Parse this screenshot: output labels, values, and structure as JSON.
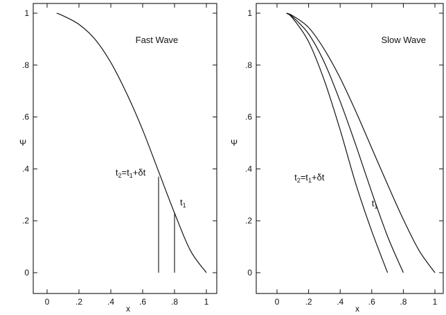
{
  "chart_data": [
    {
      "type": "line",
      "title": "Fast Wave",
      "xlabel": "x",
      "ylabel": "Ψ",
      "xlim": [
        0,
        1
      ],
      "ylim": [
        0,
        1
      ],
      "x_ticks": [
        "0",
        ".2",
        ".4",
        ".6",
        ".8",
        "1"
      ],
      "y_ticks": [
        "0",
        ".2",
        ".4",
        ".6",
        ".8",
        "1"
      ],
      "grid": false,
      "series": [
        {
          "x": [
            0.06,
            0.1,
            0.2,
            0.3,
            0.4,
            0.5,
            0.6,
            0.7,
            0.8,
            0.9,
            1.0
          ],
          "y": [
            1.0,
            0.99,
            0.957,
            0.9,
            0.81,
            0.69,
            0.55,
            0.39,
            0.23,
            0.085,
            0.0
          ]
        }
      ],
      "markers": [
        {
          "x": 0.7,
          "y_top": 0.37
        },
        {
          "x": 0.8,
          "y_top": 0.23
        }
      ],
      "annotations": [
        {
          "base": "t",
          "sub": "2",
          "rest": "=t",
          "sub2": "1",
          "tail": "+δt",
          "x": 0.43,
          "y": 0.375
        },
        {
          "base": "t",
          "sub": "1",
          "x": 0.835,
          "y": 0.26
        }
      ]
    },
    {
      "type": "line",
      "title": "Slow Wave",
      "xlabel": "x",
      "ylabel": "Ψ",
      "xlim": [
        0,
        1
      ],
      "ylim": [
        0,
        1
      ],
      "x_ticks": [
        "0",
        ".2",
        ".4",
        ".6",
        ".8",
        "1"
      ],
      "y_ticks": [
        "0",
        ".2",
        ".4",
        ".6",
        ".8",
        "1"
      ],
      "grid": false,
      "series": [
        {
          "x": [
            0.06,
            0.1,
            0.2,
            0.3,
            0.4,
            0.5,
            0.6,
            0.7
          ],
          "y": [
            1.0,
            0.98,
            0.89,
            0.74,
            0.55,
            0.34,
            0.16,
            0.0
          ]
        },
        {
          "x": [
            0.06,
            0.1,
            0.2,
            0.3,
            0.4,
            0.5,
            0.6,
            0.7,
            0.8
          ],
          "y": [
            1.0,
            0.985,
            0.92,
            0.81,
            0.66,
            0.49,
            0.31,
            0.14,
            0.0
          ]
        },
        {
          "x": [
            0.06,
            0.1,
            0.2,
            0.3,
            0.4,
            0.5,
            0.6,
            0.7,
            0.8,
            0.9,
            1.0
          ],
          "y": [
            1.0,
            0.99,
            0.945,
            0.86,
            0.75,
            0.62,
            0.48,
            0.34,
            0.205,
            0.085,
            0.0
          ]
        }
      ],
      "markers": [],
      "annotations": [
        {
          "base": "t",
          "sub": "2",
          "rest": "=t",
          "sub2": "1",
          "tail": "+δt",
          "x": 0.11,
          "y": 0.355
        },
        {
          "base": "t",
          "sub": "1",
          "x": 0.6,
          "y": 0.255
        }
      ]
    }
  ]
}
